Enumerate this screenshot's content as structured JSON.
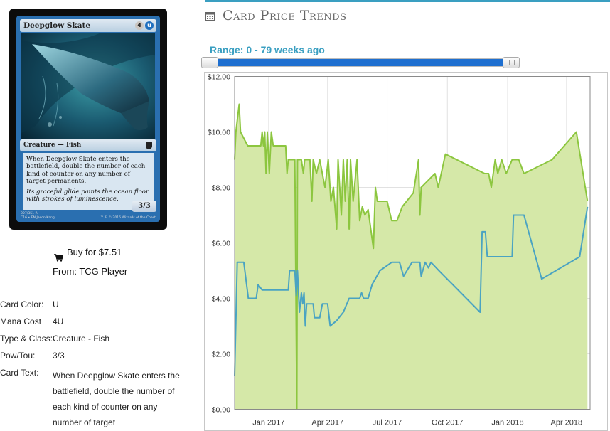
{
  "card_image": {
    "name": "Deepglow Skate",
    "mana_symbols": [
      "4",
      "u"
    ],
    "type_line": "Creature — Fish",
    "rules_text": "When Deepglow Skate enters the battlefield, double the number of each kind of counter on any number of target permanents.",
    "flavor_text": "Its graceful glide paints the ocean floor with strokes of luminescence.",
    "power_toughness": "3/3",
    "collector_line": "007/351 R",
    "set_line": "C16 • EN",
    "artist_line": "Jason Kang",
    "copyright": "™ & © 2016 Wizards of the Coast"
  },
  "buy": {
    "label": "Buy for $7.51",
    "from": "From: TCG Player"
  },
  "details": {
    "color_label": "Card Color:",
    "color_value": "U",
    "mana_label": "Mana Cost",
    "mana_value": "4U",
    "type_label": "Type & Class:",
    "type_value": "Creature - Fish",
    "pt_label": "Pow/Tou:",
    "pt_value": "3/3",
    "text_label": "Card Text:",
    "text_value": "When Deepglow Skate enters the battlefield, double the number of each kind of counter on any number of target"
  },
  "trends": {
    "title": "Card Price Trends",
    "range_label": "Range: 0 - 79 weeks ago"
  },
  "colors": {
    "accent": "#3a9fc1",
    "slider_fill": "#1e6fd0",
    "green_line": "#8cc63f",
    "green_fill": "#d5e8a8",
    "blue_line": "#4aa3c2"
  },
  "chart_data": {
    "type": "area",
    "y_tick_labels": [
      "$0.00",
      "$2.00",
      "$4.00",
      "$6.00",
      "$8.00",
      "$10.00",
      "$12.00"
    ],
    "ylim": [
      0,
      12
    ],
    "x_tick_labels": [
      "Jan 2017",
      "Apr 2017",
      "Jul 2017",
      "Oct 2017",
      "Jan 2018",
      "Apr 2018"
    ],
    "x_ticks": [
      "2017-01-01",
      "2017-04-01",
      "2017-07-01",
      "2017-10-01",
      "2018-01-01",
      "2018-04-01"
    ],
    "xlim": [
      "2016-11-10",
      "2018-05-07"
    ],
    "grid": true,
    "series": [
      {
        "color": "#8cc63f",
        "fill": "#d5e8a8",
        "points": [
          [
            "2016-11-10",
            9.0
          ],
          [
            "2016-11-12",
            10.0
          ],
          [
            "2016-11-17",
            11.0
          ],
          [
            "2016-11-19",
            10.0
          ],
          [
            "2016-11-30",
            9.5
          ],
          [
            "2016-12-10",
            9.5
          ],
          [
            "2016-12-20",
            9.5
          ],
          [
            "2016-12-22",
            10.0
          ],
          [
            "2016-12-24",
            9.5
          ],
          [
            "2016-12-26",
            10.0
          ],
          [
            "2016-12-28",
            8.5
          ],
          [
            "2016-12-30",
            10.0
          ],
          [
            "2017-01-02",
            8.5
          ],
          [
            "2017-01-05",
            10.0
          ],
          [
            "2017-01-08",
            9.5
          ],
          [
            "2017-01-20",
            9.5
          ],
          [
            "2017-01-27",
            9.5
          ],
          [
            "2017-01-29",
            8.5
          ],
          [
            "2017-01-31",
            9.0
          ],
          [
            "2017-02-10",
            9.0
          ],
          [
            "2017-02-13",
            0.0
          ],
          [
            "2017-02-14",
            9.0
          ],
          [
            "2017-02-20",
            9.0
          ],
          [
            "2017-02-23",
            8.5
          ],
          [
            "2017-02-25",
            9.0
          ],
          [
            "2017-03-05",
            9.0
          ],
          [
            "2017-03-08",
            7.5
          ],
          [
            "2017-03-10",
            9.0
          ],
          [
            "2017-03-15",
            8.5
          ],
          [
            "2017-03-20",
            9.0
          ],
          [
            "2017-03-28",
            8.0
          ],
          [
            "2017-04-02",
            9.0
          ],
          [
            "2017-04-06",
            7.5
          ],
          [
            "2017-04-10",
            8.0
          ],
          [
            "2017-04-15",
            6.5
          ],
          [
            "2017-04-17",
            9.0
          ],
          [
            "2017-04-22",
            7.0
          ],
          [
            "2017-04-25",
            9.0
          ],
          [
            "2017-04-28",
            7.5
          ],
          [
            "2017-05-01",
            9.0
          ],
          [
            "2017-05-04",
            6.5
          ],
          [
            "2017-05-06",
            9.0
          ],
          [
            "2017-05-10",
            7.5
          ],
          [
            "2017-05-16",
            9.0
          ],
          [
            "2017-05-20",
            6.8
          ],
          [
            "2017-05-24",
            7.3
          ],
          [
            "2017-05-28",
            7.0
          ],
          [
            "2017-06-02",
            7.2
          ],
          [
            "2017-06-10",
            5.8
          ],
          [
            "2017-06-13",
            8.0
          ],
          [
            "2017-06-16",
            7.5
          ],
          [
            "2017-07-01",
            7.5
          ],
          [
            "2017-07-08",
            6.8
          ],
          [
            "2017-07-16",
            6.8
          ],
          [
            "2017-07-24",
            7.3
          ],
          [
            "2017-08-10",
            7.8
          ],
          [
            "2017-08-18",
            9.0
          ],
          [
            "2017-08-20",
            7.0
          ],
          [
            "2017-08-22",
            8.0
          ],
          [
            "2017-09-12",
            8.5
          ],
          [
            "2017-09-17",
            8.0
          ],
          [
            "2017-09-28",
            9.2
          ],
          [
            "2017-11-27",
            8.5
          ],
          [
            "2017-12-03",
            8.5
          ],
          [
            "2017-12-07",
            8.0
          ],
          [
            "2017-12-13",
            9.0
          ],
          [
            "2017-12-17",
            8.5
          ],
          [
            "2017-12-23",
            9.0
          ],
          [
            "2017-12-30",
            8.5
          ],
          [
            "2018-01-08",
            9.0
          ],
          [
            "2018-01-18",
            9.0
          ],
          [
            "2018-01-26",
            8.5
          ],
          [
            "2018-03-10",
            9.0
          ],
          [
            "2018-04-16",
            10.0
          ],
          [
            "2018-05-03",
            7.5
          ]
        ]
      },
      {
        "color": "#4aa3c2",
        "points": [
          [
            "2016-11-10",
            1.2
          ],
          [
            "2016-11-14",
            5.3
          ],
          [
            "2016-11-24",
            5.3
          ],
          [
            "2016-12-01",
            4.0
          ],
          [
            "2016-12-13",
            4.0
          ],
          [
            "2016-12-16",
            4.5
          ],
          [
            "2016-12-22",
            4.3
          ],
          [
            "2017-01-31",
            4.3
          ],
          [
            "2017-02-02",
            5.0
          ],
          [
            "2017-02-10",
            5.0
          ],
          [
            "2017-02-12",
            4.1
          ],
          [
            "2017-02-14",
            5.0
          ],
          [
            "2017-02-17",
            3.5
          ],
          [
            "2017-02-20",
            4.2
          ],
          [
            "2017-02-22",
            3.8
          ],
          [
            "2017-02-24",
            4.2
          ],
          [
            "2017-02-26",
            3.0
          ],
          [
            "2017-02-28",
            3.8
          ],
          [
            "2017-03-10",
            3.8
          ],
          [
            "2017-03-12",
            3.3
          ],
          [
            "2017-03-20",
            3.3
          ],
          [
            "2017-03-24",
            3.8
          ],
          [
            "2017-04-01",
            3.8
          ],
          [
            "2017-04-05",
            3.0
          ],
          [
            "2017-04-15",
            3.2
          ],
          [
            "2017-04-25",
            3.5
          ],
          [
            "2017-05-04",
            4.0
          ],
          [
            "2017-05-20",
            4.0
          ],
          [
            "2017-05-23",
            4.2
          ],
          [
            "2017-05-26",
            4.0
          ],
          [
            "2017-06-02",
            4.0
          ],
          [
            "2017-06-08",
            4.5
          ],
          [
            "2017-06-20",
            5.0
          ],
          [
            "2017-07-08",
            5.3
          ],
          [
            "2017-07-20",
            5.3
          ],
          [
            "2017-07-26",
            4.8
          ],
          [
            "2017-08-08",
            5.3
          ],
          [
            "2017-08-20",
            5.3
          ],
          [
            "2017-08-22",
            4.8
          ],
          [
            "2017-08-28",
            5.3
          ],
          [
            "2017-09-02",
            5.1
          ],
          [
            "2017-09-06",
            5.3
          ],
          [
            "2017-09-18",
            5.0
          ],
          [
            "2017-11-20",
            3.5
          ],
          [
            "2017-11-23",
            6.4
          ],
          [
            "2017-11-28",
            6.4
          ],
          [
            "2017-12-01",
            5.5
          ],
          [
            "2018-01-08",
            5.5
          ],
          [
            "2018-01-10",
            7.0
          ],
          [
            "2018-01-26",
            7.0
          ],
          [
            "2018-02-22",
            4.7
          ],
          [
            "2018-04-21",
            5.5
          ],
          [
            "2018-05-03",
            7.3
          ]
        ]
      }
    ]
  }
}
